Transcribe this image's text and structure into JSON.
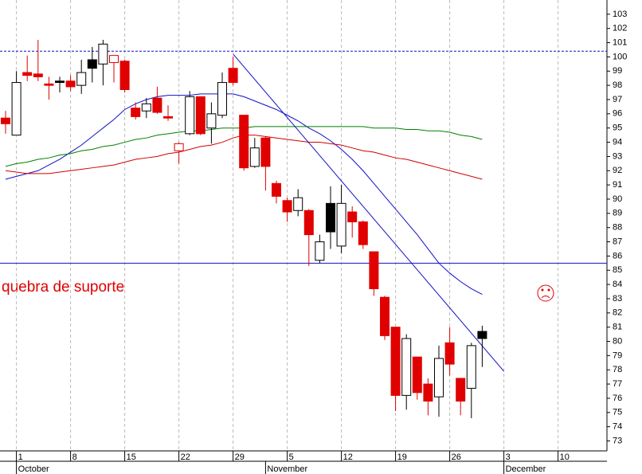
{
  "chart_data": {
    "type": "candlestick",
    "categories": [
      null,
      "1",
      null,
      null,
      null,
      null,
      "8",
      null,
      null,
      null,
      null,
      "15",
      null,
      null,
      null,
      null,
      "22",
      null,
      null,
      null,
      null,
      "29",
      null,
      null,
      null,
      null,
      "5",
      null,
      null,
      null,
      null,
      "12",
      null,
      null,
      null,
      null,
      "19",
      null,
      null,
      null,
      null,
      "26",
      null,
      null,
      null,
      null,
      "3",
      null,
      null,
      null,
      null,
      "10"
    ],
    "months": [
      {
        "label": "October",
        "index": 1
      },
      {
        "label": "November",
        "index": 24
      },
      {
        "label": "December",
        "index": 46
      }
    ],
    "open": [
      95.7,
      94.5,
      98.9,
      98.8,
      98.1,
      98.3,
      98.3,
      98.0,
      99.2,
      99.5,
      100.1,
      99.7,
      96.4,
      96.2,
      97.1,
      95.8,
      93.9,
      94.6,
      97.2,
      95.0,
      95.9,
      99.2,
      95.9,
      92.3,
      94.3,
      91.1,
      89.9,
      89.2,
      89.2,
      85.7,
      87.7,
      86.7,
      89.1,
      88.4,
      86.3,
      83.1,
      81.0,
      76.2,
      78.9,
      77.0,
      76.1,
      79.9,
      77.4,
      76.7,
      80.2,
      null,
      null,
      null,
      null,
      null,
      null,
      null
    ],
    "high": [
      96.2,
      99.0,
      100.1,
      101.2,
      98.6,
      98.6,
      98.7,
      99.8,
      100.7,
      101.2,
      100.1,
      99.8,
      96.8,
      97.1,
      97.9,
      96.6,
      94.0,
      97.6,
      97.2,
      96.8,
      98.9,
      100.0,
      95.9,
      94.3,
      94.4,
      91.3,
      90.1,
      90.7,
      89.3,
      87.5,
      90.9,
      91.0,
      89.5,
      88.5,
      86.3,
      83.2,
      81.0,
      80.5,
      78.9,
      77.4,
      79.7,
      81.0,
      77.4,
      79.9,
      81.1,
      null,
      null,
      null,
      null,
      null,
      null,
      null
    ],
    "low": [
      94.6,
      94.5,
      98.3,
      98.3,
      97.0,
      97.5,
      97.6,
      97.4,
      98.2,
      98.0,
      98.2,
      97.5,
      95.6,
      95.7,
      96.0,
      95.5,
      92.5,
      94.5,
      94.5,
      93.9,
      95.7,
      98.0,
      92.0,
      92.2,
      90.6,
      89.7,
      88.4,
      88.8,
      85.3,
      85.5,
      86.5,
      86.2,
      87.3,
      86.5,
      83.2,
      80.1,
      75.1,
      75.2,
      75.9,
      74.8,
      74.7,
      77.6,
      74.8,
      74.6,
      78.2,
      null,
      null,
      null,
      null,
      null,
      null,
      null
    ],
    "close": [
      95.3,
      98.2,
      98.7,
      98.6,
      98.0,
      98.2,
      97.9,
      98.9,
      99.8,
      100.9,
      99.6,
      97.7,
      95.8,
      96.7,
      96.1,
      95.7,
      93.4,
      97.2,
      94.6,
      96.0,
      98.2,
      98.2,
      92.2,
      93.6,
      92.3,
      90.2,
      89.1,
      90.1,
      87.5,
      87.0,
      89.7,
      89.7,
      88.4,
      86.8,
      83.7,
      80.4,
      76.2,
      80.2,
      76.4,
      75.8,
      78.8,
      78.4,
      75.8,
      79.7,
      80.7,
      null,
      null,
      null,
      null,
      null,
      null,
      null
    ],
    "styles": [
      "red",
      "white",
      "red",
      "red",
      "red",
      "black",
      "red",
      "white",
      "black",
      "white",
      "red-hollow",
      "red",
      "red",
      "white",
      "red",
      "red",
      "red-hollow",
      "white",
      "red",
      "white",
      "white",
      "red",
      "red",
      "white",
      "red",
      "red",
      "red",
      "white",
      "red",
      "white",
      "black",
      "white",
      "red",
      "red",
      "red",
      "red",
      "red",
      "white",
      "red",
      "red",
      "white",
      "red",
      "red",
      "white",
      "black",
      null,
      null,
      null,
      null,
      null,
      null,
      null
    ],
    "moving_averages": [
      {
        "color": "#1010c8",
        "values": [
          91.4,
          91.6,
          91.8,
          92.0,
          92.4,
          92.8,
          93.3,
          93.8,
          94.4,
          95.0,
          95.6,
          96.3,
          96.7,
          97.0,
          97.2,
          97.3,
          97.3,
          97.3,
          97.4,
          97.4,
          97.4,
          97.4,
          97.2,
          96.9,
          96.6,
          96.3,
          95.9,
          95.5,
          95.0,
          94.6,
          94.1,
          93.5,
          92.8,
          92.0,
          91.1,
          90.2,
          89.3,
          88.4,
          87.5,
          86.5,
          85.5,
          84.8,
          84.2,
          83.7,
          83.3,
          null,
          null,
          null,
          null,
          null,
          null,
          null
        ]
      },
      {
        "color": "#008000",
        "values": [
          92.3,
          92.5,
          92.6,
          92.8,
          92.9,
          93.1,
          93.2,
          93.4,
          93.5,
          93.7,
          93.8,
          94.0,
          94.2,
          94.3,
          94.5,
          94.6,
          94.7,
          94.8,
          94.8,
          94.9,
          95.0,
          95.0,
          95.0,
          95.1,
          95.1,
          95.1,
          95.1,
          95.1,
          95.1,
          95.1,
          95.1,
          95.1,
          95.1,
          95.1,
          95.0,
          95.0,
          95.0,
          94.9,
          94.9,
          94.8,
          94.8,
          94.7,
          94.5,
          94.4,
          94.2,
          null,
          null,
          null,
          null,
          null,
          null,
          null
        ]
      },
      {
        "color": "#d00000",
        "values": [
          92.0,
          91.9,
          91.8,
          91.8,
          91.8,
          91.9,
          92.0,
          92.1,
          92.2,
          92.3,
          92.4,
          92.6,
          92.8,
          92.9,
          93.0,
          93.2,
          93.3,
          93.5,
          93.7,
          93.8,
          94.0,
          94.3,
          94.5,
          94.5,
          94.4,
          94.3,
          94.2,
          94.1,
          94.0,
          94.0,
          93.9,
          93.8,
          93.6,
          93.4,
          93.3,
          93.1,
          92.9,
          92.8,
          92.6,
          92.4,
          92.2,
          92.0,
          91.8,
          91.6,
          91.4,
          null,
          null,
          null,
          null,
          null,
          null,
          null
        ]
      }
    ],
    "trendline": {
      "color": "#1010c8",
      "index": [
        21,
        46
      ],
      "values": [
        100.2,
        77.9
      ]
    },
    "hlines": [
      {
        "value": 100.4,
        "color": "#1010c8",
        "dash": true
      },
      {
        "value": 85.5,
        "color": "#1010c8",
        "dash": false
      }
    ],
    "annotation": "quebra de suporte",
    "ylim": [
      72.3,
      104.0
    ],
    "yticks": [
      73,
      74,
      75,
      76,
      77,
      78,
      79,
      80,
      81,
      82,
      83,
      84,
      85,
      86,
      87,
      88,
      89,
      90,
      91,
      92,
      93,
      94,
      95,
      96,
      97,
      98,
      99,
      100,
      101,
      102,
      103
    ],
    "grid": true
  }
}
